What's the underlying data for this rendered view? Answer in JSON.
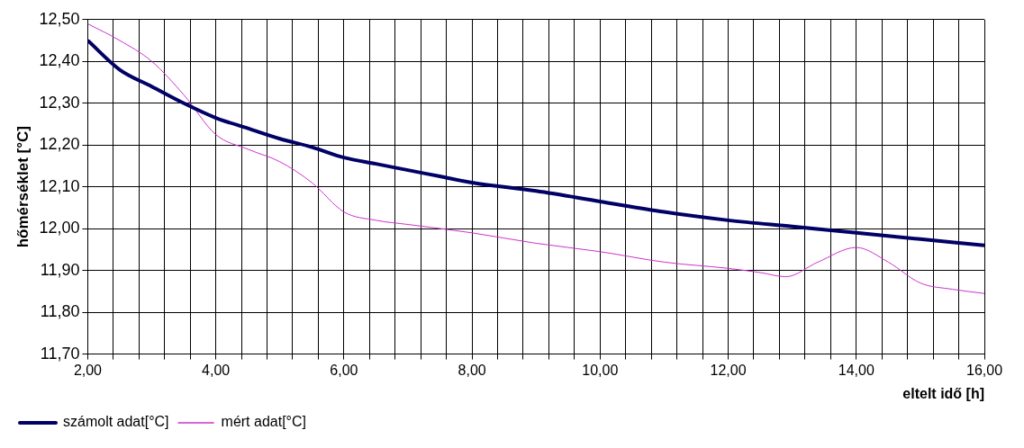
{
  "chart_data": {
    "type": "line",
    "xlabel": "eltelt idő [h]",
    "ylabel": "hőmérséklet [°C]",
    "xlim": [
      2,
      16
    ],
    "xticks": [
      {
        "value": 2,
        "label": "2,00"
      },
      {
        "value": 2.4,
        "label": null
      },
      {
        "value": 2.8,
        "label": null
      },
      {
        "value": 3.2,
        "label": null
      },
      {
        "value": 3.6,
        "label": null
      },
      {
        "value": 4,
        "label": "4,00"
      },
      {
        "value": 4.4,
        "label": null
      },
      {
        "value": 4.8,
        "label": null
      },
      {
        "value": 5.2,
        "label": null
      },
      {
        "value": 5.6,
        "label": null
      },
      {
        "value": 6,
        "label": "6,00"
      },
      {
        "value": 6.4,
        "label": null
      },
      {
        "value": 6.8,
        "label": null
      },
      {
        "value": 7.2,
        "label": null
      },
      {
        "value": 7.6,
        "label": null
      },
      {
        "value": 8,
        "label": "8,00"
      },
      {
        "value": 8.4,
        "label": null
      },
      {
        "value": 8.8,
        "label": null
      },
      {
        "value": 9.2,
        "label": null
      },
      {
        "value": 9.6,
        "label": null
      },
      {
        "value": 10,
        "label": "10,00"
      },
      {
        "value": 10.4,
        "label": null
      },
      {
        "value": 10.8,
        "label": null
      },
      {
        "value": 11.2,
        "label": null
      },
      {
        "value": 11.6,
        "label": null
      },
      {
        "value": 12,
        "label": "12,00"
      },
      {
        "value": 12.4,
        "label": null
      },
      {
        "value": 12.8,
        "label": null
      },
      {
        "value": 13.2,
        "label": null
      },
      {
        "value": 13.6,
        "label": null
      },
      {
        "value": 14,
        "label": "14,00"
      },
      {
        "value": 14.4,
        "label": null
      },
      {
        "value": 14.8,
        "label": null
      },
      {
        "value": 15.2,
        "label": null
      },
      {
        "value": 15.6,
        "label": null
      },
      {
        "value": 16,
        "label": "16,00"
      }
    ],
    "ylim": [
      11.7,
      12.5
    ],
    "yticks": [
      {
        "value": 11.7,
        "label": "11,70"
      },
      {
        "value": 11.8,
        "label": "11,80"
      },
      {
        "value": 11.9,
        "label": "11,90"
      },
      {
        "value": 12,
        "label": "12,00"
      },
      {
        "value": 12.1,
        "label": "12,10"
      },
      {
        "value": 12.2,
        "label": "12,20"
      },
      {
        "value": 12.3,
        "label": "12,30"
      },
      {
        "value": 12.4,
        "label": "12,40"
      },
      {
        "value": 12.5,
        "label": "12,50"
      }
    ],
    "grid": true,
    "legend": "bottom left",
    "marker": "none",
    "line_style": "solid",
    "series": [
      {
        "name": "számolt adat[°C]",
        "color": "#000066",
        "x": [
          2,
          2.5,
          3,
          3.5,
          4,
          4.5,
          5,
          5.5,
          6,
          6.5,
          7,
          7.5,
          8,
          9,
          10,
          11,
          12,
          13,
          14,
          15,
          16
        ],
        "values": [
          12.45,
          12.38,
          12.34,
          12.3,
          12.265,
          12.24,
          12.215,
          12.195,
          12.17,
          12.155,
          12.14,
          12.125,
          12.11,
          12.09,
          12.065,
          12.04,
          12.02,
          12.005,
          11.99,
          11.975,
          11.96
        ]
      },
      {
        "name": "mért adat[°C]",
        "color": "#cc33cc",
        "x": [
          2,
          2.5,
          3,
          3.5,
          4,
          4.5,
          5,
          5.5,
          6,
          6.5,
          7,
          8,
          9,
          10,
          11,
          12,
          12.5,
          12.9,
          13.4,
          14,
          14.5,
          15,
          15.5,
          16
        ],
        "values": [
          12.49,
          12.45,
          12.4,
          12.32,
          12.225,
          12.19,
          12.16,
          12.11,
          12.04,
          12.02,
          12.01,
          11.99,
          11.965,
          11.945,
          11.92,
          11.905,
          11.895,
          11.885,
          11.92,
          11.955,
          11.92,
          11.87,
          11.855,
          11.845
        ]
      }
    ]
  }
}
